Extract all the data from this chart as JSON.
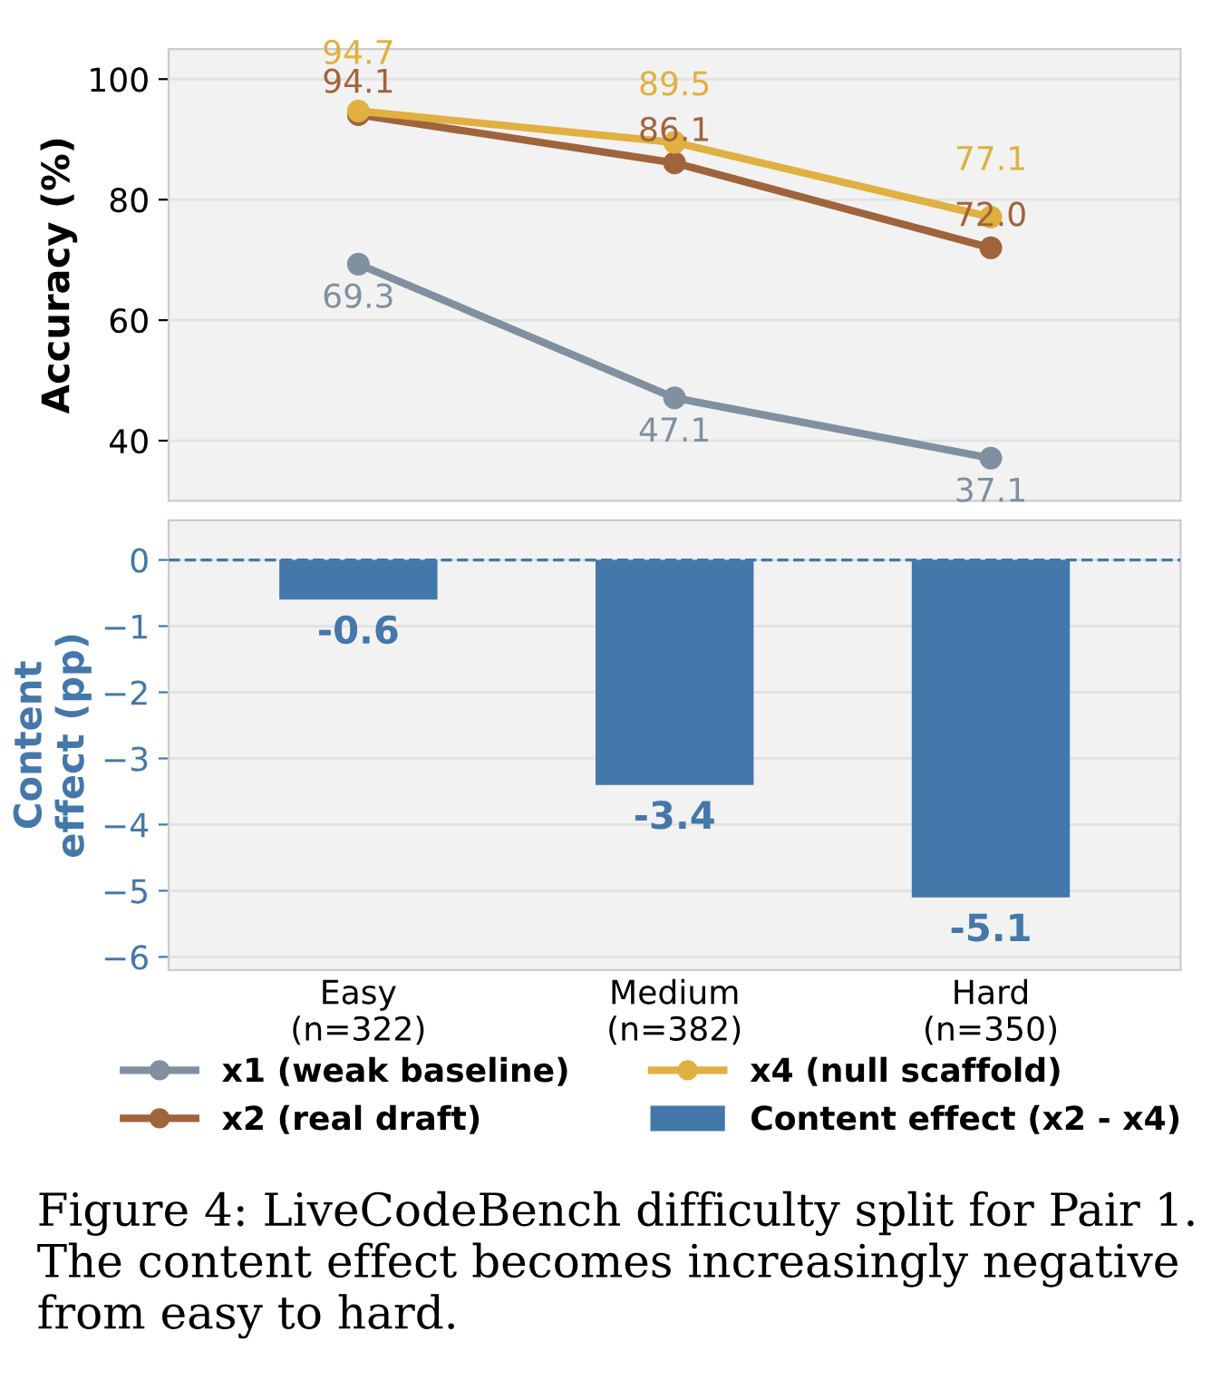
{
  "chart_data": [
    {
      "type": "line",
      "ylabel": "Accuracy (%)",
      "categories": [
        null,
        null,
        null
      ],
      "tick_labels": "y",
      "ylim": [
        30,
        105
      ],
      "yticks": [
        40,
        60,
        80,
        100
      ],
      "grid": "y",
      "marker": "circle",
      "line_style": "solid",
      "legend": "bottom",
      "series": [
        {
          "name": "x1 (weak baseline)",
          "color": "#8090a0",
          "values": [
            69.3,
            47.1,
            37.1
          ],
          "value_labels": [
            "69.3",
            "47.1",
            "37.1"
          ]
        },
        {
          "name": "x2 (real draft)",
          "color": "#a0643c",
          "values": [
            94.1,
            86.1,
            72.0
          ],
          "value_labels": [
            "94.1",
            "86.1",
            "72.0"
          ]
        },
        {
          "name": "x4 (null scaffold)",
          "color": "#e0b040",
          "values": [
            94.7,
            89.5,
            77.1
          ],
          "value_labels": [
            "94.7",
            "89.5",
            "77.1"
          ]
        }
      ]
    },
    {
      "type": "bar",
      "ylabel": "Content\neffect (pp)",
      "categories": [
        "Easy\n(n=322)",
        "Medium\n(n=382)",
        "Hard\n(n=350)"
      ],
      "ylim": [
        -6.2,
        0.6
      ],
      "yticks": [
        {
          "value": 0,
          "label": "0"
        },
        {
          "value": -1,
          "label": "−1"
        },
        {
          "value": -2,
          "label": "−2"
        },
        {
          "value": -3,
          "label": "−3"
        },
        {
          "value": -4,
          "label": "−4"
        },
        {
          "value": -5,
          "label": "−5"
        },
        {
          "value": -6,
          "label": "−6"
        }
      ],
      "grid": "y",
      "legend": "bottom",
      "value_labels": [
        "-0.6",
        "-3.4",
        "-5.1"
      ],
      "ref_lines": [
        {
          "axis": "y",
          "value": 0,
          "color": "#4477aa",
          "line_style": "dashed"
        }
      ],
      "series": [
        {
          "name": "Content effect (x2 - x4)",
          "color": "#4477aa",
          "values": [
            -0.6,
            -3.4,
            -5.1
          ]
        }
      ],
      "annotations": [
        "Figure 4: LiveCodeBench difficulty split for Pair 1. The content effect becomes increasingly negative from easy to hard."
      ]
    }
  ]
}
